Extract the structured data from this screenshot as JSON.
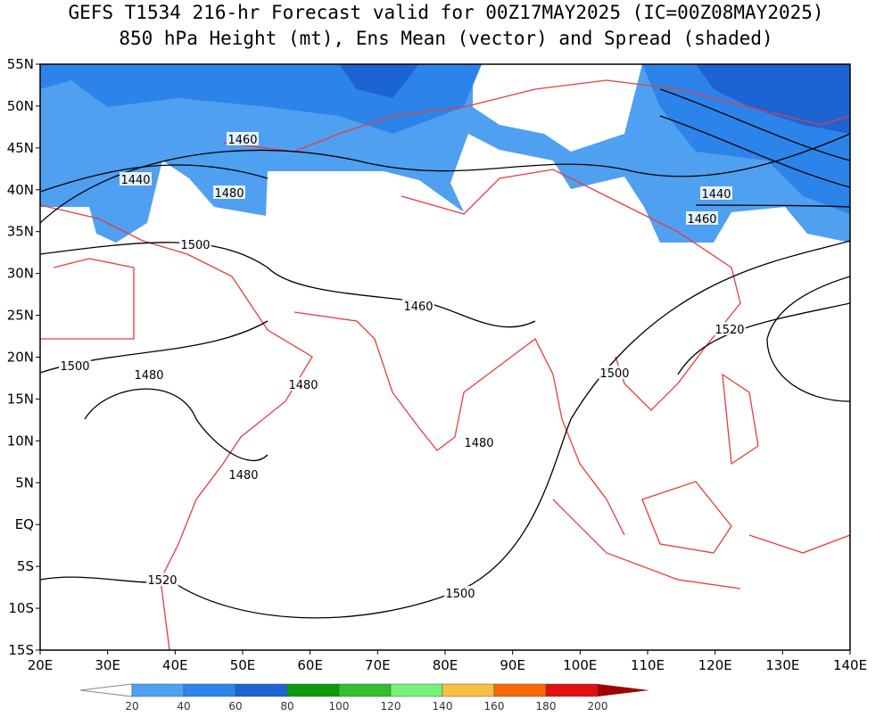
{
  "title": [
    "GEFS T1534 216-hr Forecast valid for 00Z17MAY2025 (IC=00Z08MAY2025)",
    "850 hPa Height (mt), Ens Mean (vector) and Spread (shaded)"
  ],
  "lat_labels": [
    "55N",
    "50N",
    "45N",
    "40N",
    "35N",
    "30N",
    "25N",
    "20N",
    "15N",
    "10N",
    "5N",
    "EQ",
    "5S",
    "10S",
    "15S"
  ],
  "lon_labels": [
    "20E",
    "30E",
    "40E",
    "50E",
    "60E",
    "70E",
    "80E",
    "90E",
    "100E",
    "110E",
    "120E",
    "130E",
    "140E"
  ],
  "contour_labels": [
    "1460",
    "1440",
    "1480",
    "1500",
    "1460",
    "1500",
    "1480",
    "1480",
    "1480",
    "1480",
    "1520",
    "1500",
    "1500",
    "1520",
    "1440",
    "1460"
  ],
  "colorbar_labels": [
    "20",
    "40",
    "60",
    "80",
    "100",
    "120",
    "140",
    "160",
    "180",
    "200"
  ]
}
